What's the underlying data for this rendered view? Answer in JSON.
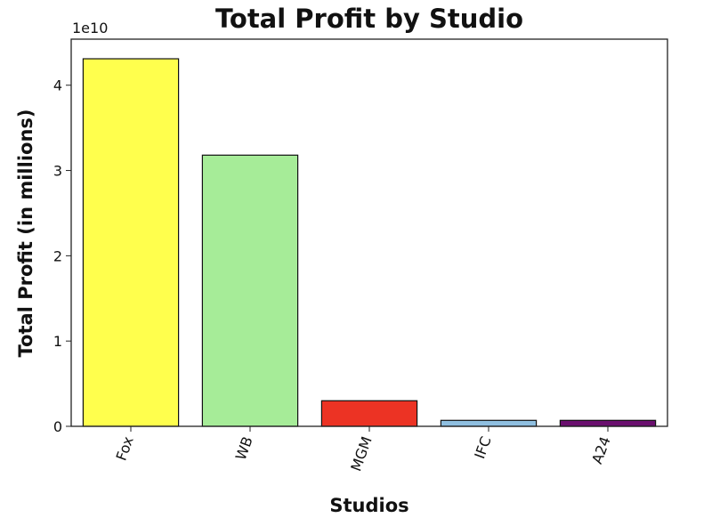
{
  "chart_data": {
    "type": "bar",
    "title": "Total Profit by Studio",
    "xlabel": "Studios",
    "ylabel": "Total Profit (in millions)",
    "y_offset_label": "1e10",
    "categories": [
      "Fox",
      "WB",
      "MGM",
      "IFC",
      "A24"
    ],
    "values": [
      43100000000,
      31800000000,
      3000000000,
      700000000,
      700000000
    ],
    "bar_colors": [
      "#ffff4d",
      "#a6ec98",
      "#ec3324",
      "#8fbfe0",
      "#6a0f6e"
    ],
    "ylim": [
      0,
      45400000000
    ],
    "yticks": [
      0,
      10000000000,
      20000000000,
      30000000000,
      40000000000
    ],
    "ytick_labels": [
      "0",
      "1",
      "2",
      "3",
      "4"
    ],
    "grid": false,
    "legend": "none"
  }
}
